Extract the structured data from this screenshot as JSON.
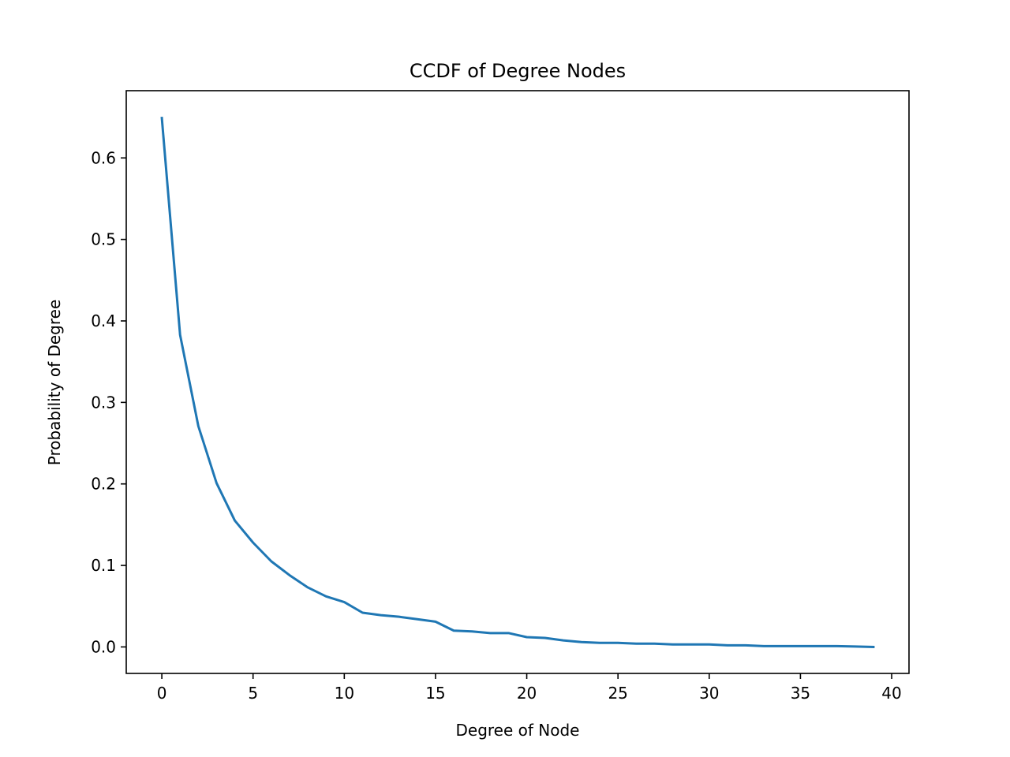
{
  "chart_data": {
    "type": "line",
    "title": "CCDF of Degree Nodes",
    "xlabel": "Degree of Node",
    "ylabel": "Probability of Degree",
    "xlim": [
      -1.95,
      40.95
    ],
    "ylim": [
      -0.0325,
      0.6825
    ],
    "xticks": [
      0,
      5,
      10,
      15,
      20,
      25,
      30,
      35,
      40
    ],
    "xtick_labels": [
      "0",
      "5",
      "10",
      "15",
      "20",
      "25",
      "30",
      "35",
      "40"
    ],
    "yticks": [
      0.0,
      0.1,
      0.2,
      0.3,
      0.4,
      0.5,
      0.6
    ],
    "ytick_labels": [
      "0.0",
      "0.1",
      "0.2",
      "0.3",
      "0.4",
      "0.5",
      "0.6"
    ],
    "grid": false,
    "series": [
      {
        "color": "#1f77b4",
        "x": [
          0,
          1,
          2,
          3,
          4,
          5,
          6,
          7,
          8,
          9,
          10,
          11,
          12,
          13,
          14,
          15,
          16,
          17,
          18,
          19,
          20,
          21,
          22,
          23,
          24,
          25,
          26,
          27,
          28,
          29,
          30,
          31,
          32,
          33,
          34,
          35,
          36,
          37,
          38,
          39
        ],
        "y": [
          0.649,
          0.383,
          0.271,
          0.201,
          0.155,
          0.128,
          0.105,
          0.088,
          0.073,
          0.062,
          0.055,
          0.042,
          0.039,
          0.037,
          0.034,
          0.031,
          0.02,
          0.019,
          0.017,
          0.017,
          0.012,
          0.011,
          0.008,
          0.006,
          0.005,
          0.005,
          0.004,
          0.004,
          0.003,
          0.003,
          0.003,
          0.002,
          0.002,
          0.001,
          0.001,
          0.001,
          0.001,
          0.001,
          0.0005,
          0.0
        ]
      }
    ]
  }
}
